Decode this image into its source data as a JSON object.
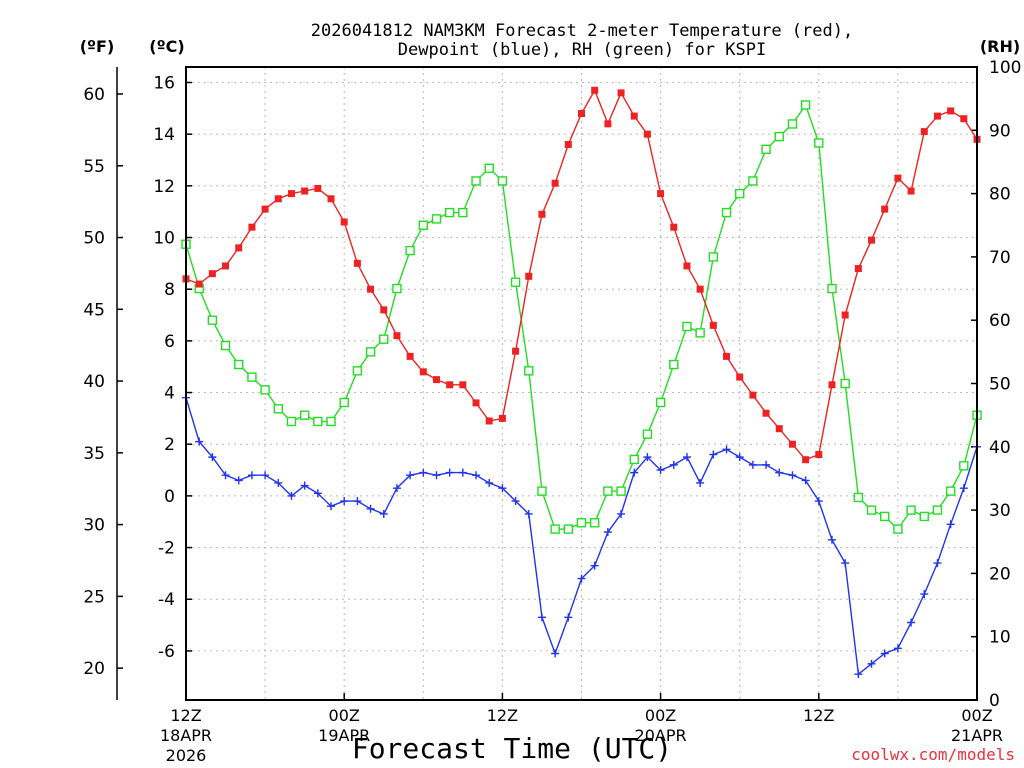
{
  "chart_data": {
    "type": "line",
    "title_line1": "2026041812 NAM3KM Forecast 2-meter Temperature (red),",
    "title_line2": "Dewpoint (blue), RH (green) for KSPI",
    "xlabel": "Forecast Time (UTC)",
    "credit": "coolwx.com/models",
    "left_outer_label": "(ºF)",
    "left_inner_label": "(ºC)",
    "right_label": "(RH)",
    "celsius_ticks": [
      "-6",
      "-4",
      "-2",
      "0",
      "2",
      "4",
      "6",
      "8",
      "10",
      "12",
      "14",
      "16"
    ],
    "fahrenheit_ticks": [
      "20",
      "25",
      "30",
      "35",
      "40",
      "45",
      "50",
      "55",
      "60"
    ],
    "rh_ticks": [
      "0",
      "10",
      "20",
      "30",
      "40",
      "50",
      "60",
      "70",
      "80",
      "90",
      "100"
    ],
    "x_ticks": [
      {
        "hour": 0,
        "l1": "12Z",
        "l2": "18APR",
        "l3": "2026"
      },
      {
        "hour": 12,
        "l1": "00Z",
        "l2": "19APR",
        "l3": ""
      },
      {
        "hour": 24,
        "l1": "12Z",
        "l2": "",
        "l3": ""
      },
      {
        "hour": 36,
        "l1": "00Z",
        "l2": "20APR",
        "l3": ""
      },
      {
        "hour": 48,
        "l1": "12Z",
        "l2": "",
        "l3": ""
      },
      {
        "hour": 60,
        "l1": "00Z",
        "l2": "21APR",
        "l3": ""
      }
    ],
    "x_range_hours": [
      0,
      60
    ],
    "y_range_celsius": [
      -7.9,
      16.6
    ],
    "y_range_rh": [
      0,
      100
    ],
    "grid": true,
    "series": [
      {
        "name": "2-meter Temperature (°C)",
        "color": "#ee2222",
        "marker": "filled-square",
        "axis": "celsius",
        "values": [
          8.4,
          8.2,
          8.6,
          8.9,
          9.6,
          10.4,
          11.1,
          11.5,
          11.7,
          11.8,
          11.9,
          11.5,
          10.6,
          9.0,
          8.0,
          7.2,
          6.2,
          5.4,
          4.8,
          4.5,
          4.3,
          4.3,
          3.6,
          2.9,
          3.0,
          5.6,
          8.5,
          10.9,
          12.1,
          13.6,
          14.8,
          15.7,
          14.4,
          15.6,
          14.7,
          14.0,
          11.7,
          10.4,
          8.9,
          8.0,
          6.6,
          5.4,
          4.6,
          3.9,
          3.2,
          2.6,
          2.0,
          1.4,
          1.6,
          4.3,
          7.0,
          8.8,
          9.9,
          11.1,
          12.3,
          11.8,
          14.1,
          14.7,
          14.9,
          14.6,
          13.8
        ]
      },
      {
        "name": "Dewpoint (°C)",
        "color": "#2233ee",
        "marker": "plus",
        "axis": "celsius",
        "values": [
          3.8,
          2.1,
          1.5,
          0.8,
          0.6,
          0.8,
          0.8,
          0.5,
          0.0,
          0.4,
          0.1,
          -0.4,
          -0.2,
          -0.2,
          -0.5,
          -0.7,
          0.3,
          0.8,
          0.9,
          0.8,
          0.9,
          0.9,
          0.8,
          0.5,
          0.3,
          -0.2,
          -0.7,
          -4.7,
          -6.1,
          -4.7,
          -3.2,
          -2.7,
          -1.4,
          -0.7,
          0.9,
          1.5,
          1.0,
          1.2,
          1.5,
          0.5,
          1.6,
          1.8,
          1.5,
          1.2,
          1.2,
          0.9,
          0.8,
          0.6,
          -0.2,
          -1.7,
          -2.6,
          -6.9,
          -6.5,
          -6.1,
          -5.9,
          -4.9,
          -3.8,
          -2.6,
          -1.1,
          0.3,
          1.9
        ]
      },
      {
        "name": "RH (%)",
        "color": "#22dd22",
        "marker": "open-square",
        "axis": "rh",
        "values": [
          72,
          65,
          60,
          56,
          53,
          51,
          49,
          46,
          44,
          45,
          44,
          44,
          47,
          52,
          55,
          57,
          65,
          71,
          75,
          76,
          77,
          77,
          82,
          84,
          82,
          66,
          52,
          33,
          27,
          27,
          28,
          28,
          33,
          33,
          38,
          42,
          47,
          53,
          59,
          58,
          70,
          77,
          80,
          82,
          87,
          89,
          91,
          94,
          88,
          65,
          50,
          32,
          30,
          29,
          27,
          30,
          29,
          30,
          33,
          37,
          45
        ]
      }
    ]
  }
}
